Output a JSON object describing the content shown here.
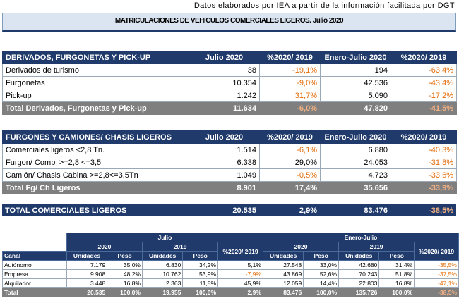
{
  "source_note": "Datos elaborados por IEA a partir de la información facilitada por DGT",
  "title": "MATRICULACIONES DE VEHICULOS COMERCIALES LIGEROS. Julio 2020",
  "colors": {
    "header": "#1f3a6b",
    "negative": "#e36c09",
    "total": "#7f7f7f",
    "banner": "#dbe5f1"
  },
  "derivados": {
    "headers": [
      "DERIVADOS, FURGONETAS Y PICK-UP",
      "Julio 2020",
      "%2020/ 2019",
      "Enero-Julio 2020",
      "%2020/ 2019"
    ],
    "rows": [
      [
        "Derivados de turismo",
        "38",
        "-19,1%",
        "194",
        "-63,4%"
      ],
      [
        "Furgonetas",
        "10.354",
        "-9,0%",
        "42.536",
        "-43,4%"
      ],
      [
        "Pick-up",
        "1.242",
        "31,7%",
        "5.090",
        "-17,2%"
      ]
    ],
    "total": [
      "Total Derivados, Furgonetas y Pick-up",
      "11.634",
      "-6,0%",
      "47.820",
      "-41,5%"
    ]
  },
  "furgones": {
    "headers": [
      "FURGONES Y CAMIONES/ CHASIS LIGEROS",
      "Julio 2020",
      "%2020/ 2019",
      "Enero-Julio 2020",
      "%2020/ 2019"
    ],
    "rows": [
      [
        "Comerciales ligeros <2,8 Tn.",
        "1.514",
        "-6,1%",
        "6.880",
        "-40,3%"
      ],
      [
        "Furgon/ Combi >=2,8 <=3,5",
        "6.338",
        "29,0%",
        "24.053",
        "-31,8%"
      ],
      [
        "Camión/ Chasis Cabina >=2,8<=3,5Tn",
        "1.049",
        "-0,5%",
        "4.723",
        "-33,6%"
      ]
    ],
    "total": [
      "Total Fg/ Ch Ligeros",
      "8.901",
      "17,4%",
      "35.656",
      "-33,9%"
    ]
  },
  "total_comerciales": [
    "TOTAL COMERCIALES LIGEROS",
    "20.535",
    "2,9%",
    "83.476",
    "-38,5%"
  ],
  "canal": {
    "period_headers": [
      "Julio",
      "Enero-Julio"
    ],
    "year_headers": [
      "2020",
      "2019",
      "2020",
      "2019"
    ],
    "pct_header": "%2020/ 2019",
    "col_headers": [
      "Canal",
      "Unidades",
      "Peso",
      "Unidades",
      "Peso",
      "Unidades",
      "Peso",
      "Unidades",
      "Peso"
    ],
    "rows": [
      [
        "Autónomo",
        "7.179",
        "35,0%",
        "6.830",
        "34,2%",
        "5,1%",
        "27.548",
        "33,0%",
        "42.680",
        "31,4%",
        "-35,5%"
      ],
      [
        "Empresa",
        "9.908",
        "48,2%",
        "10.762",
        "53,9%",
        "-7,9%",
        "43.869",
        "52,6%",
        "70.243",
        "51,8%",
        "-37,5%"
      ],
      [
        "Alquilador",
        "3.448",
        "16,8%",
        "2.363",
        "11,8%",
        "45,9%",
        "12.059",
        "14,4%",
        "22.803",
        "16,8%",
        "-47,1%"
      ]
    ],
    "total": [
      "Total",
      "20.535",
      "100,0%",
      "19.955",
      "100,0%",
      "2,9%",
      "83.476",
      "100,0%",
      "135.726",
      "100,0%",
      "-38,5%"
    ]
  }
}
